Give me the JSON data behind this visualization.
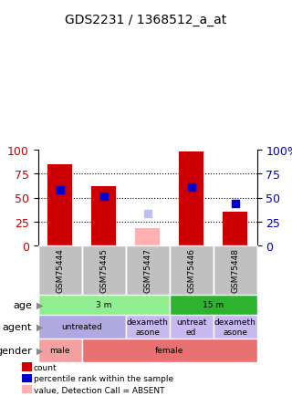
{
  "title": "GDS2231 / 1368512_a_at",
  "samples": [
    "GSM75444",
    "GSM75445",
    "GSM75447",
    "GSM75446",
    "GSM75448"
  ],
  "red_bars": [
    85,
    62,
    18,
    98,
    35
  ],
  "blue_squares": [
    58,
    51,
    null,
    61,
    44
  ],
  "pink_bars": [
    null,
    null,
    18,
    null,
    null
  ],
  "lavender_squares": [
    null,
    null,
    33,
    null,
    null
  ],
  "age_groups": [
    {
      "label": "3 m",
      "cols": [
        0,
        1,
        2
      ],
      "color": "#90ee90"
    },
    {
      "label": "15 m",
      "cols": [
        3,
        4
      ],
      "color": "#2db32d"
    }
  ],
  "agent_groups": [
    {
      "label": "untreated",
      "cols": [
        0,
        1
      ],
      "color": "#b0a8e0"
    },
    {
      "label": "dexameth\nasone",
      "cols": [
        2
      ],
      "color": "#c8b8f0"
    },
    {
      "label": "untreat\ned",
      "cols": [
        3
      ],
      "color": "#c8b8f0"
    },
    {
      "label": "dexameth\nasone",
      "cols": [
        4
      ],
      "color": "#c8b8f0"
    }
  ],
  "gender_groups": [
    {
      "label": "male",
      "cols": [
        0
      ],
      "color": "#f4a0a0"
    },
    {
      "label": "female",
      "cols": [
        1,
        2,
        3,
        4
      ],
      "color": "#e87070"
    }
  ],
  "row_labels": [
    "age",
    "agent",
    "gender"
  ],
  "legend": [
    {
      "color": "#cc0000",
      "label": "count"
    },
    {
      "color": "#0000cc",
      "label": "percentile rank within the sample"
    },
    {
      "color": "#ffb0b0",
      "label": "value, Detection Call = ABSENT"
    },
    {
      "color": "#c0c0f0",
      "label": "rank, Detection Call = ABSENT"
    }
  ],
  "ylim": [
    0,
    100
  ],
  "yticks": [
    0,
    25,
    50,
    75,
    100
  ],
  "bar_color": "#cc0000",
  "blue_sq_color": "#0000cc",
  "pink_color": "#ffb0b0",
  "lavender_color": "#c0c0f0",
  "sample_bg_color": "#c0c0c0",
  "left_label_color": "#cc0000",
  "right_label_color": "#0000bb"
}
